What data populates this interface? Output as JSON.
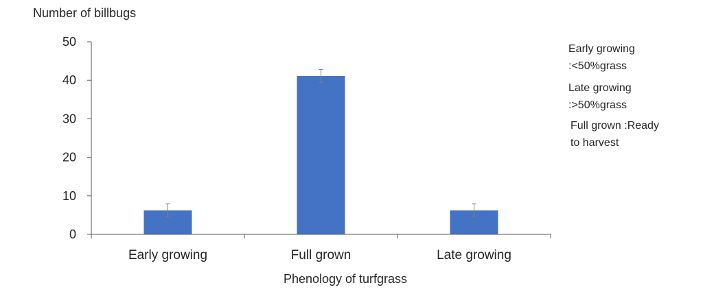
{
  "chart_data": {
    "type": "bar",
    "title": "",
    "ylabel": "Number of billbugs",
    "xlabel": "Phenology of turfgrass",
    "categories": [
      "Early growing",
      "Full grown",
      "Late growing"
    ],
    "values": [
      6.2,
      41.1,
      6.2
    ],
    "errors": [
      1.7,
      1.7,
      1.7
    ],
    "ylim": [
      0,
      50
    ],
    "yticks": [
      0,
      10,
      20,
      30,
      40,
      50
    ],
    "grid": false,
    "bar_color": "#4472C4",
    "legend": "none",
    "annotations": [
      [
        "Early growing",
        ":<50%grass"
      ],
      [
        "Late growing",
        ":>50%grass"
      ],
      [
        "Full grown :Ready",
        "to harvest"
      ]
    ]
  }
}
